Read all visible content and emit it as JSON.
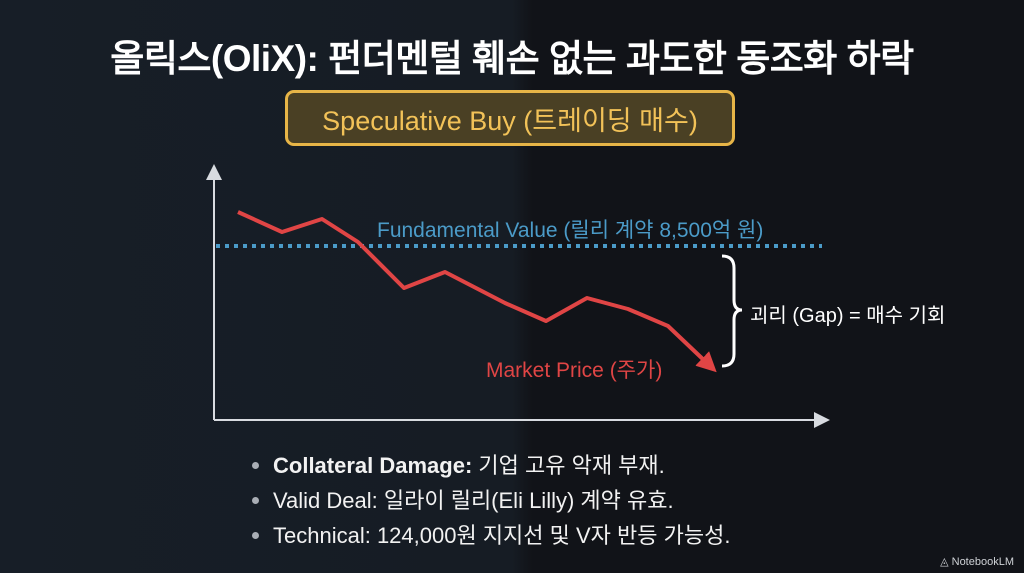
{
  "title": "올릭스(OliX): 펀더멘털 훼손 없는 과도한 동조화 하락",
  "badge": "Speculative Buy (트레이딩 매수)",
  "diagram": {
    "fundamental_label": "Fundamental Value (릴리 계약 8,500억 원)",
    "market_label": "Market Price (주가)",
    "gap_label": "괴리 (Gap) = 매수 기회",
    "colors": {
      "fundamental": "#4b9bc8",
      "market": "#e04545",
      "gap": "#ffffff",
      "axis": "#d8dbe0"
    }
  },
  "bullets": [
    {
      "bold": "Collateral Damage:",
      "text": " 기업 고유 악재 부재."
    },
    {
      "bold": "",
      "text": "Valid Deal: 일라이 릴리(Eli Lilly) 계약 유효."
    },
    {
      "bold": "",
      "text": "Technical: 124,000원 지지선 및 V자 반등 가능성."
    }
  ],
  "brand": "NotebookLM"
}
